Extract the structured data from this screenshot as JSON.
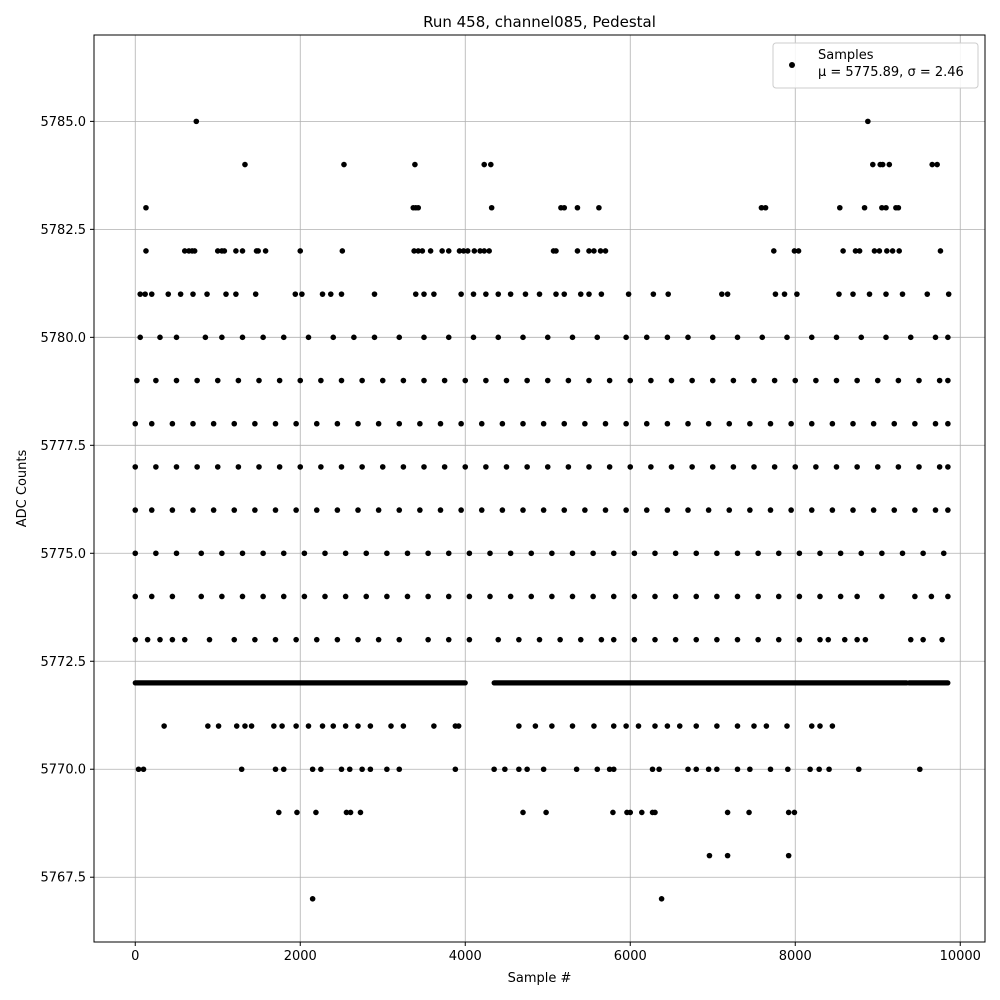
{
  "chart_data": {
    "type": "scatter",
    "title": "Run 458, channel085, Pedestal",
    "xlabel": "Sample #",
    "ylabel": "ADC Counts",
    "xlim": [
      -500,
      10300
    ],
    "ylim": [
      5766.0,
      5787.0
    ],
    "xticks": [
      0,
      2000,
      4000,
      6000,
      8000,
      10000
    ],
    "yticks": [
      5767.5,
      5770.0,
      5772.5,
      5775.0,
      5777.5,
      5780.0,
      5782.5,
      5785.0
    ],
    "xtick_labels": [
      "0",
      "2000",
      "4000",
      "6000",
      "8000",
      "10000"
    ],
    "ytick_labels": [
      "5767.5",
      "5770.0",
      "5772.5",
      "5775.0",
      "5777.5",
      "5780.0",
      "5782.5",
      "5785.0"
    ],
    "grid": true,
    "legend_position": "top-right",
    "series": [
      {
        "name": "Samples",
        "color": "#000000",
        "marker": "circle",
        "x": [
          740,
          8880,
          1330,
          2530,
          3390,
          4230,
          4310,
          8940,
          9030,
          9060,
          9140,
          9660,
          9720,
          130,
          3370,
          3400,
          3430,
          4320,
          5160,
          5200,
          5360,
          5620,
          7590,
          7640,
          8540,
          8840,
          9050,
          9100,
          9220,
          9250,
          130,
          600,
          650,
          690,
          720,
          1000,
          1050,
          1080,
          1220,
          1300,
          1470,
          1490,
          1580,
          2000,
          2510,
          3380,
          3430,
          3480,
          3580,
          3720,
          3800,
          3930,
          3980,
          4030,
          4110,
          4180,
          4230,
          4290,
          5070,
          5100,
          5360,
          5500,
          5560,
          5640,
          5700,
          7740,
          7990,
          8040,
          8580,
          8730,
          8780,
          8960,
          9020,
          9110,
          9180,
          9260,
          9760,
          60,
          120,
          200,
          400,
          550,
          700,
          870,
          1100,
          1220,
          1460,
          1940,
          2020,
          2270,
          2370,
          2500,
          2900,
          3400,
          3500,
          3620,
          3950,
          4100,
          4250,
          4400,
          4550,
          4730,
          4900,
          5100,
          5200,
          5400,
          5500,
          5650,
          5980,
          6280,
          6460,
          7110,
          7180,
          7760,
          7870,
          8020,
          8530,
          8700,
          8900,
          9100,
          9300,
          9600,
          9860,
          60,
          300,
          500,
          850,
          1050,
          1300,
          1550,
          1800,
          2100,
          2400,
          2650,
          2900,
          3200,
          3500,
          3800,
          4100,
          4400,
          4700,
          5000,
          5300,
          5600,
          5950,
          6200,
          6450,
          6700,
          7000,
          7300,
          7600,
          7900,
          8200,
          8500,
          8800,
          9100,
          9400,
          9700,
          9850,
          20,
          250,
          500,
          750,
          1000,
          1250,
          1500,
          1750,
          2000,
          2250,
          2500,
          2750,
          3000,
          3250,
          3500,
          3750,
          4000,
          4250,
          4500,
          4750,
          5000,
          5250,
          5500,
          5750,
          6000,
          6250,
          6500,
          6750,
          7000,
          7250,
          7500,
          7750,
          8000,
          8250,
          8500,
          8750,
          9000,
          9250,
          9500,
          9750,
          9850,
          0,
          200,
          450,
          700,
          950,
          1200,
          1450,
          1700,
          1950,
          2200,
          2450,
          2700,
          2950,
          3200,
          3450,
          3700,
          3950,
          4200,
          4450,
          4700,
          4950,
          5200,
          5450,
          5700,
          5950,
          6200,
          6450,
          6700,
          6950,
          7200,
          7450,
          7700,
          7950,
          8200,
          8450,
          8700,
          8950,
          9200,
          9450,
          9700,
          9850,
          0,
          250,
          500,
          750,
          1000,
          1250,
          1500,
          1750,
          2000,
          2250,
          2500,
          2750,
          3000,
          3250,
          3500,
          3750,
          4000,
          4250,
          4500,
          4750,
          5000,
          5250,
          5500,
          5750,
          6000,
          6250,
          6500,
          6750,
          7000,
          7250,
          7500,
          7750,
          8000,
          8250,
          8500,
          8750,
          9000,
          9250,
          9500,
          9750,
          9850,
          0,
          200,
          450,
          700,
          950,
          1200,
          1450,
          1700,
          1950,
          2200,
          2450,
          2700,
          2950,
          3200,
          3450,
          3700,
          3950,
          4200,
          4450,
          4700,
          4950,
          5200,
          5450,
          5700,
          5950,
          6200,
          6450,
          6700,
          6950,
          7200,
          7450,
          7700,
          7950,
          8200,
          8450,
          8700,
          8950,
          9200,
          9450,
          9700,
          9850,
          0,
          250,
          500,
          800,
          1050,
          1300,
          1550,
          1800,
          2050,
          2300,
          2550,
          2800,
          3050,
          3300,
          3550,
          3800,
          4050,
          4300,
          4550,
          4800,
          5050,
          5300,
          5550,
          5800,
          6050,
          6300,
          6550,
          6800,
          7050,
          7300,
          7550,
          7800,
          8050,
          8300,
          8550,
          8800,
          9050,
          9300,
          9550,
          9800,
          0,
          200,
          450,
          800,
          1050,
          1300,
          1550,
          1800,
          2050,
          2300,
          2550,
          2800,
          3050,
          3300,
          3550,
          3800,
          4050,
          4300,
          4550,
          4800,
          5050,
          5300,
          5550,
          5800,
          6050,
          6300,
          6550,
          6800,
          7050,
          7300,
          7550,
          7800,
          8050,
          8300,
          8550,
          8750,
          9050,
          9450,
          9650,
          9850,
          0,
          150,
          300,
          450,
          600,
          900,
          1200,
          1450,
          1700,
          1950,
          2200,
          2450,
          2700,
          2950,
          3200,
          3550,
          3800,
          4050,
          4400,
          4650,
          4900,
          5150,
          5400,
          5650,
          5800,
          6050,
          6300,
          6550,
          6800,
          7050,
          7300,
          7550,
          7800,
          8050,
          8300,
          8400,
          8600,
          8750,
          8850,
          9400,
          9550,
          9780,
          350,
          880,
          1010,
          1230,
          1330,
          1410,
          1680,
          1780,
          1950,
          2100,
          2270,
          2400,
          2550,
          2700,
          2850,
          3100,
          3250,
          3620,
          3880,
          3920,
          4650,
          4850,
          5050,
          5300,
          5560,
          5800,
          5950,
          6100,
          6300,
          6450,
          6600,
          6800,
          7050,
          7300,
          7500,
          7650,
          7900,
          8200,
          8300,
          8450,
          40,
          100,
          1290,
          1700,
          1800,
          2150,
          2250,
          2500,
          2600,
          2750,
          2850,
          3050,
          3200,
          3880,
          4350,
          4480,
          4650,
          4750,
          4950,
          5350,
          5600,
          5750,
          5800,
          6270,
          6350,
          6700,
          6800,
          6950,
          7050,
          7300,
          7450,
          7700,
          7910,
          8180,
          8290,
          8410,
          8770,
          9510,
          1740,
          1960,
          2190,
          2560,
          2610,
          2730,
          4700,
          4980,
          5790,
          5960,
          6000,
          6140,
          6270,
          6300,
          7180,
          7440,
          7920,
          7990,
          6960,
          7180,
          7920,
          2150,
          6380
        ],
        "y": [
          5785,
          5785,
          5784,
          5784,
          5784,
          5784,
          5784,
          5784,
          5784,
          5784,
          5784,
          5784,
          5784,
          5783,
          5783,
          5783,
          5783,
          5783,
          5783,
          5783,
          5783,
          5783,
          5783,
          5783,
          5783,
          5783,
          5783,
          5783,
          5783,
          5783,
          5782,
          5782,
          5782,
          5782,
          5782,
          5782,
          5782,
          5782,
          5782,
          5782,
          5782,
          5782,
          5782,
          5782,
          5782,
          5782,
          5782,
          5782,
          5782,
          5782,
          5782,
          5782,
          5782,
          5782,
          5782,
          5782,
          5782,
          5782,
          5782,
          5782,
          5782,
          5782,
          5782,
          5782,
          5782,
          5782,
          5782,
          5782,
          5782,
          5782,
          5782,
          5782,
          5782,
          5782,
          5782,
          5782,
          5782,
          5781,
          5781,
          5781,
          5781,
          5781,
          5781,
          5781,
          5781,
          5781,
          5781,
          5781,
          5781,
          5781,
          5781,
          5781,
          5781,
          5781,
          5781,
          5781,
          5781,
          5781,
          5781,
          5781,
          5781,
          5781,
          5781,
          5781,
          5781,
          5781,
          5781,
          5781,
          5781,
          5781,
          5781,
          5781,
          5781,
          5781,
          5781,
          5781,
          5781,
          5781,
          5781,
          5781,
          5781,
          5781,
          5781,
          5780,
          5780,
          5780,
          5780,
          5780,
          5780,
          5780,
          5780,
          5780,
          5780,
          5780,
          5780,
          5780,
          5780,
          5780,
          5780,
          5780,
          5780,
          5780,
          5780,
          5780,
          5780,
          5780,
          5780,
          5780,
          5780,
          5780,
          5780,
          5780,
          5780,
          5780,
          5780,
          5780,
          5780,
          5780,
          5780,
          5779,
          5779,
          5779,
          5779,
          5779,
          5779,
          5779,
          5779,
          5779,
          5779,
          5779,
          5779,
          5779,
          5779,
          5779,
          5779,
          5779,
          5779,
          5779,
          5779,
          5779,
          5779,
          5779,
          5779,
          5779,
          5779,
          5779,
          5779,
          5779,
          5779,
          5779,
          5779,
          5779,
          5779,
          5779,
          5779,
          5779,
          5779,
          5779,
          5779,
          5779,
          5778,
          5778,
          5778,
          5778,
          5778,
          5778,
          5778,
          5778,
          5778,
          5778,
          5778,
          5778,
          5778,
          5778,
          5778,
          5778,
          5778,
          5778,
          5778,
          5778,
          5778,
          5778,
          5778,
          5778,
          5778,
          5778,
          5778,
          5778,
          5778,
          5778,
          5778,
          5778,
          5778,
          5778,
          5778,
          5778,
          5778,
          5778,
          5778,
          5778,
          5778,
          5777,
          5777,
          5777,
          5777,
          5777,
          5777,
          5777,
          5777,
          5777,
          5777,
          5777,
          5777,
          5777,
          5777,
          5777,
          5777,
          5777,
          5777,
          5777,
          5777,
          5777,
          5777,
          5777,
          5777,
          5777,
          5777,
          5777,
          5777,
          5777,
          5777,
          5777,
          5777,
          5777,
          5777,
          5777,
          5777,
          5777,
          5777,
          5777,
          5777,
          5777,
          5776,
          5776,
          5776,
          5776,
          5776,
          5776,
          5776,
          5776,
          5776,
          5776,
          5776,
          5776,
          5776,
          5776,
          5776,
          5776,
          5776,
          5776,
          5776,
          5776,
          5776,
          5776,
          5776,
          5776,
          5776,
          5776,
          5776,
          5776,
          5776,
          5776,
          5776,
          5776,
          5776,
          5776,
          5776,
          5776,
          5776,
          5776,
          5776,
          5776,
          5776,
          5775,
          5775,
          5775,
          5775,
          5775,
          5775,
          5775,
          5775,
          5775,
          5775,
          5775,
          5775,
          5775,
          5775,
          5775,
          5775,
          5775,
          5775,
          5775,
          5775,
          5775,
          5775,
          5775,
          5775,
          5775,
          5775,
          5775,
          5775,
          5775,
          5775,
          5775,
          5775,
          5775,
          5775,
          5775,
          5775,
          5775,
          5775,
          5775,
          5775,
          5774,
          5774,
          5774,
          5774,
          5774,
          5774,
          5774,
          5774,
          5774,
          5774,
          5774,
          5774,
          5774,
          5774,
          5774,
          5774,
          5774,
          5774,
          5774,
          5774,
          5774,
          5774,
          5774,
          5774,
          5774,
          5774,
          5774,
          5774,
          5774,
          5774,
          5774,
          5774,
          5774,
          5774,
          5774,
          5774,
          5774,
          5774,
          5774,
          5774,
          5773,
          5773,
          5773,
          5773,
          5773,
          5773,
          5773,
          5773,
          5773,
          5773,
          5773,
          5773,
          5773,
          5773,
          5773,
          5773,
          5773,
          5773,
          5773,
          5773,
          5773,
          5773,
          5773,
          5773,
          5773,
          5773,
          5773,
          5773,
          5773,
          5773,
          5773,
          5773,
          5773,
          5773,
          5773,
          5773,
          5773,
          5773,
          5773,
          5773,
          5773,
          5773,
          5771,
          5771,
          5771,
          5771,
          5771,
          5771,
          5771,
          5771,
          5771,
          5771,
          5771,
          5771,
          5771,
          5771,
          5771,
          5771,
          5771,
          5771,
          5771,
          5771,
          5771,
          5771,
          5771,
          5771,
          5771,
          5771,
          5771,
          5771,
          5771,
          5771,
          5771,
          5771,
          5771,
          5771,
          5771,
          5771,
          5771,
          5771,
          5771,
          5771,
          5770,
          5770,
          5770,
          5770,
          5770,
          5770,
          5770,
          5770,
          5770,
          5770,
          5770,
          5770,
          5770,
          5770,
          5770,
          5770,
          5770,
          5770,
          5770,
          5770,
          5770,
          5770,
          5770,
          5770,
          5770,
          5770,
          5770,
          5770,
          5770,
          5770,
          5770,
          5770,
          5770,
          5770,
          5770,
          5770,
          5770,
          5770,
          5769,
          5769,
          5769,
          5769,
          5769,
          5769,
          5769,
          5769,
          5769,
          5769,
          5769,
          5769,
          5769,
          5769,
          5769,
          5769,
          5769,
          5769,
          5768,
          5768,
          5768,
          5767,
          5767
        ]
      }
    ],
    "legend": {
      "label": "Samples",
      "stats": "μ = 5775.89, σ = 2.46"
    },
    "band_5772": {
      "y": 5772,
      "x_start": 0,
      "x_end": 9850,
      "gaps": [
        [
          4000,
          4350
        ],
        [
          9350,
          9380
        ]
      ]
    }
  }
}
